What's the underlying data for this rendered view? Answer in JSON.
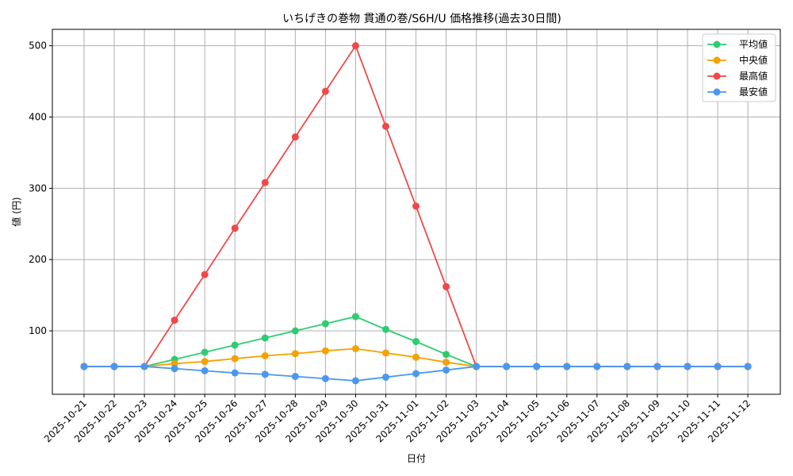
{
  "chart_data": {
    "type": "line",
    "title": "いちげきの巻物 貫通の巻/S6H/U 価格推移(過去30日間)",
    "xlabel": "日付",
    "ylabel": "値 (円)",
    "ylim": [
      11,
      523
    ],
    "yticks": [
      100,
      200,
      300,
      400,
      500
    ],
    "grid": true,
    "legend_position": "top-right",
    "categories": [
      "2025-10-21",
      "2025-10-22",
      "2025-10-23",
      "2025-10-24",
      "2025-10-25",
      "2025-10-26",
      "2025-10-27",
      "2025-10-28",
      "2025-10-29",
      "2025-10-30",
      "2025-10-31",
      "2025-11-01",
      "2025-11-02",
      "2025-11-03",
      "2025-11-04",
      "2025-11-05",
      "2025-11-06",
      "2025-11-07",
      "2025-11-08",
      "2025-11-09",
      "2025-11-10",
      "2025-11-11",
      "2025-11-12"
    ],
    "series": [
      {
        "name": "平均値",
        "color": "#2ecc71",
        "values": [
          50,
          50,
          50,
          60,
          70,
          80,
          90,
          100,
          110,
          120,
          102,
          85,
          67,
          50,
          50,
          50,
          50,
          50,
          50,
          50,
          50,
          50,
          50
        ]
      },
      {
        "name": "中央値",
        "color": "#f5a100",
        "values": [
          50,
          50,
          50,
          54,
          57,
          61,
          65,
          68,
          72,
          75,
          69,
          63,
          56,
          50,
          50,
          50,
          50,
          50,
          50,
          50,
          50,
          50,
          50
        ]
      },
      {
        "name": "最高値",
        "color": "#f04848",
        "values": [
          50,
          50,
          50,
          115,
          179,
          244,
          308,
          372,
          436,
          500,
          387,
          275,
          162,
          50,
          50,
          50,
          50,
          50,
          50,
          50,
          50,
          50,
          50
        ]
      },
      {
        "name": "最安値",
        "color": "#4a97f0",
        "values": [
          50,
          50,
          50,
          47,
          44,
          41,
          39,
          36,
          33,
          30,
          35,
          40,
          45,
          50,
          50,
          50,
          50,
          50,
          50,
          50,
          50,
          50,
          50
        ]
      }
    ]
  }
}
